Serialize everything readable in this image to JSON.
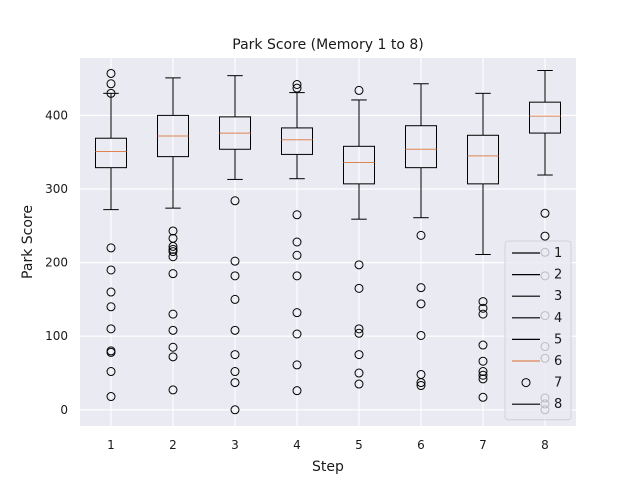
{
  "chart_data": {
    "type": "box",
    "title": "Park Score (Memory 1 to 8)",
    "xlabel": "Step",
    "ylabel": "Park Score",
    "xlim": [
      0.5,
      8.5
    ],
    "ylim": [
      -22,
      478
    ],
    "xticks": [
      1,
      2,
      3,
      4,
      5,
      6,
      7,
      8
    ],
    "yticks": [
      0,
      100,
      200,
      300,
      400
    ],
    "grid": true,
    "legend_position": "lower-right",
    "legend": [
      "1",
      "2",
      "3",
      "4",
      "5",
      "6",
      "7",
      "8"
    ],
    "colors": {
      "plot_background": "#eaeaf2",
      "grid": "#ffffff",
      "box": "#000000",
      "median": "#dd8452"
    },
    "boxes": [
      {
        "x": 1,
        "whisker_low": 272,
        "q1": 329,
        "median": 351,
        "q3": 369,
        "whisker_high": 430,
        "outliers": [
          457,
          443,
          430,
          220,
          190,
          160,
          140,
          110,
          80,
          78,
          52,
          18
        ]
      },
      {
        "x": 2,
        "whisker_low": 274,
        "q1": 344,
        "median": 372,
        "q3": 400,
        "whisker_high": 451,
        "outliers": [
          243,
          233,
          222,
          218,
          215,
          208,
          185,
          130,
          108,
          85,
          72,
          27
        ]
      },
      {
        "x": 3,
        "whisker_low": 313,
        "q1": 354,
        "median": 376,
        "q3": 398,
        "whisker_high": 454,
        "outliers": [
          284,
          202,
          182,
          150,
          108,
          75,
          52,
          37,
          0
        ]
      },
      {
        "x": 4,
        "whisker_low": 314,
        "q1": 347,
        "median": 367,
        "q3": 383,
        "whisker_high": 431,
        "outliers": [
          442,
          437,
          265,
          228,
          210,
          182,
          132,
          103,
          61,
          26
        ]
      },
      {
        "x": 5,
        "whisker_low": 259,
        "q1": 307,
        "median": 336,
        "q3": 358,
        "whisker_high": 421,
        "outliers": [
          434,
          197,
          165,
          110,
          104,
          75,
          50,
          35
        ]
      },
      {
        "x": 6,
        "whisker_low": 261,
        "q1": 329,
        "median": 354,
        "q3": 386,
        "whisker_high": 443,
        "outliers": [
          237,
          166,
          144,
          101,
          48,
          37,
          33
        ]
      },
      {
        "x": 7,
        "whisker_low": 211,
        "q1": 307,
        "median": 345,
        "q3": 373,
        "whisker_high": 430,
        "outliers": [
          147,
          138,
          130,
          88,
          66,
          52,
          47,
          42,
          17
        ]
      },
      {
        "x": 8,
        "whisker_low": 319,
        "q1": 376,
        "median": 399,
        "q3": 418,
        "whisker_high": 461,
        "outliers": [
          267,
          236,
          214,
          182,
          128,
          86,
          70,
          16,
          8,
          0
        ]
      }
    ]
  }
}
